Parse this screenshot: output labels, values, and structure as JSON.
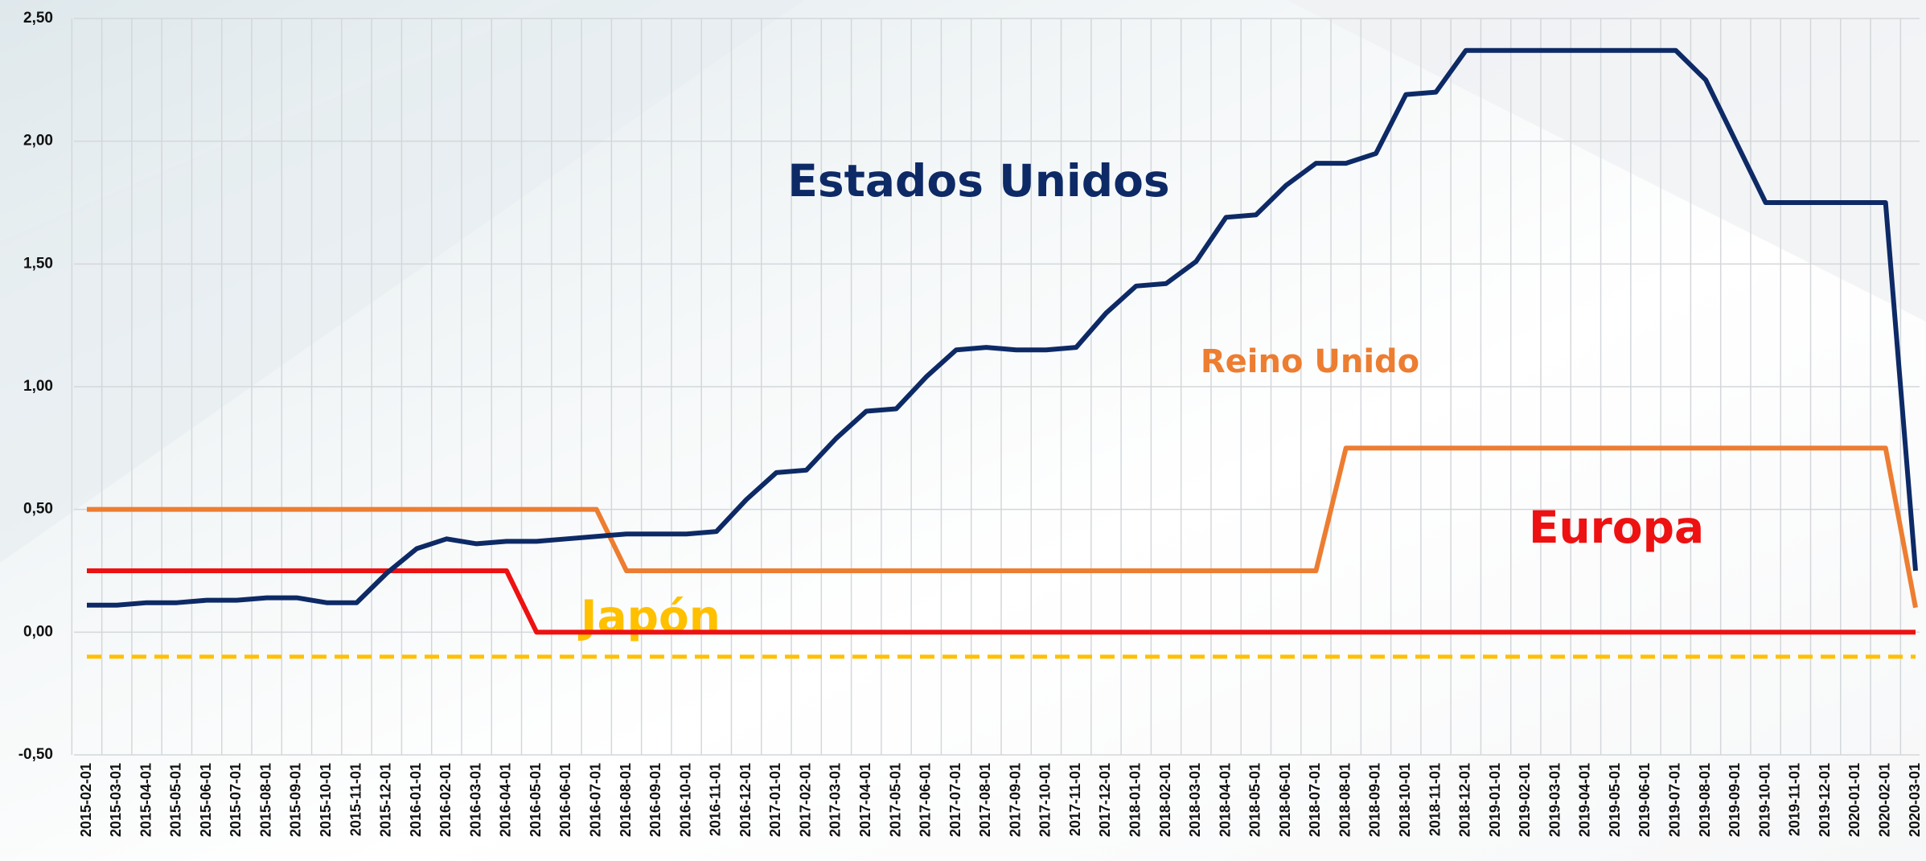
{
  "chart_data": {
    "type": "line",
    "x": [
      "2015-02-01",
      "2015-03-01",
      "2015-04-01",
      "2015-05-01",
      "2015-06-01",
      "2015-07-01",
      "2015-08-01",
      "2015-09-01",
      "2015-10-01",
      "2015-11-01",
      "2015-12-01",
      "2016-01-01",
      "2016-02-01",
      "2016-03-01",
      "2016-04-01",
      "2016-05-01",
      "2016-06-01",
      "2016-07-01",
      "2016-08-01",
      "2016-09-01",
      "2016-10-01",
      "2016-11-01",
      "2016-12-01",
      "2017-01-01",
      "2017-02-01",
      "2017-03-01",
      "2017-04-01",
      "2017-05-01",
      "2017-06-01",
      "2017-07-01",
      "2017-08-01",
      "2017-09-01",
      "2017-10-01",
      "2017-11-01",
      "2017-12-01",
      "2018-01-01",
      "2018-02-01",
      "2018-03-01",
      "2018-04-01",
      "2018-05-01",
      "2018-06-01",
      "2018-07-01",
      "2018-08-01",
      "2018-09-01",
      "2018-10-01",
      "2018-11-01",
      "2018-12-01",
      "2019-01-01",
      "2019-02-01",
      "2019-03-01",
      "2019-04-01",
      "2019-05-01",
      "2019-06-01",
      "2019-07-01",
      "2019-08-01",
      "2019-09-01",
      "2019-10-01",
      "2019-11-01",
      "2019-12-01",
      "2020-01-01",
      "2020-02-01",
      "2020-03-01"
    ],
    "series": [
      {
        "name": "Estados Unidos",
        "color": "#0d2a66",
        "dash": false,
        "values": [
          0.11,
          0.11,
          0.12,
          0.12,
          0.13,
          0.13,
          0.14,
          0.14,
          0.12,
          0.12,
          0.24,
          0.34,
          0.38,
          0.36,
          0.37,
          0.37,
          0.38,
          0.39,
          0.4,
          0.4,
          0.4,
          0.41,
          0.54,
          0.65,
          0.66,
          0.79,
          0.9,
          0.91,
          1.04,
          1.15,
          1.16,
          1.15,
          1.15,
          1.16,
          1.3,
          1.41,
          1.42,
          1.51,
          1.69,
          1.7,
          1.82,
          1.91,
          1.91,
          1.95,
          2.19,
          2.2,
          2.37,
          2.37,
          2.37,
          2.37,
          2.37,
          2.37,
          2.37,
          2.37,
          2.25,
          2.0,
          1.75,
          1.75,
          1.75,
          1.75,
          1.75,
          0.25
        ]
      },
      {
        "name": "Reino Unido",
        "color": "#ed7d31",
        "dash": false,
        "values": [
          0.5,
          0.5,
          0.5,
          0.5,
          0.5,
          0.5,
          0.5,
          0.5,
          0.5,
          0.5,
          0.5,
          0.5,
          0.5,
          0.5,
          0.5,
          0.5,
          0.5,
          0.5,
          0.25,
          0.25,
          0.25,
          0.25,
          0.25,
          0.25,
          0.25,
          0.25,
          0.25,
          0.25,
          0.25,
          0.25,
          0.25,
          0.25,
          0.25,
          0.25,
          0.25,
          0.25,
          0.25,
          0.25,
          0.25,
          0.25,
          0.25,
          0.25,
          0.75,
          0.75,
          0.75,
          0.75,
          0.75,
          0.75,
          0.75,
          0.75,
          0.75,
          0.75,
          0.75,
          0.75,
          0.75,
          0.75,
          0.75,
          0.75,
          0.75,
          0.75,
          0.75,
          0.1
        ]
      },
      {
        "name": "Europa",
        "color": "#ee1111",
        "dash": false,
        "values": [
          0.25,
          0.25,
          0.25,
          0.25,
          0.25,
          0.25,
          0.25,
          0.25,
          0.25,
          0.25,
          0.25,
          0.25,
          0.25,
          0.25,
          0.25,
          0,
          0,
          0,
          0,
          0,
          0,
          0,
          0,
          0,
          0,
          0,
          0,
          0,
          0,
          0,
          0,
          0,
          0,
          0,
          0,
          0,
          0,
          0,
          0,
          0,
          0,
          0,
          0,
          0,
          0,
          0,
          0,
          0,
          0,
          0,
          0,
          0,
          0,
          0,
          0,
          0,
          0,
          0,
          0,
          0,
          0,
          0
        ]
      },
      {
        "name": "Japón",
        "color": "#ffc000",
        "dash": true,
        "values": [
          -0.1,
          -0.1,
          -0.1,
          -0.1,
          -0.1,
          -0.1,
          -0.1,
          -0.1,
          -0.1,
          -0.1,
          -0.1,
          -0.1,
          -0.1,
          -0.1,
          -0.1,
          -0.1,
          -0.1,
          -0.1,
          -0.1,
          -0.1,
          -0.1,
          -0.1,
          -0.1,
          -0.1,
          -0.1,
          -0.1,
          -0.1,
          -0.1,
          -0.1,
          -0.1,
          -0.1,
          -0.1,
          -0.1,
          -0.1,
          -0.1,
          -0.1,
          -0.1,
          -0.1,
          -0.1,
          -0.1,
          -0.1,
          -0.1,
          -0.1,
          -0.1,
          -0.1,
          -0.1,
          -0.1,
          -0.1,
          -0.1,
          -0.1,
          -0.1,
          -0.1,
          -0.1,
          -0.1,
          -0.1,
          -0.1,
          -0.1,
          -0.1,
          -0.1,
          -0.1,
          -0.1,
          -0.1
        ]
      }
    ],
    "ylim": [
      -0.5,
      2.5
    ],
    "yticks": [
      {
        "value": -0.5,
        "label": "-0,50"
      },
      {
        "value": 0,
        "label": "0,00"
      },
      {
        "value": 0.5,
        "label": "0,50"
      },
      {
        "value": 1,
        "label": "1,00"
      },
      {
        "value": 1.5,
        "label": "1,50"
      },
      {
        "value": 2,
        "label": "2,00"
      },
      {
        "value": 2.5,
        "label": "2,50"
      }
    ],
    "grid": true
  }
}
